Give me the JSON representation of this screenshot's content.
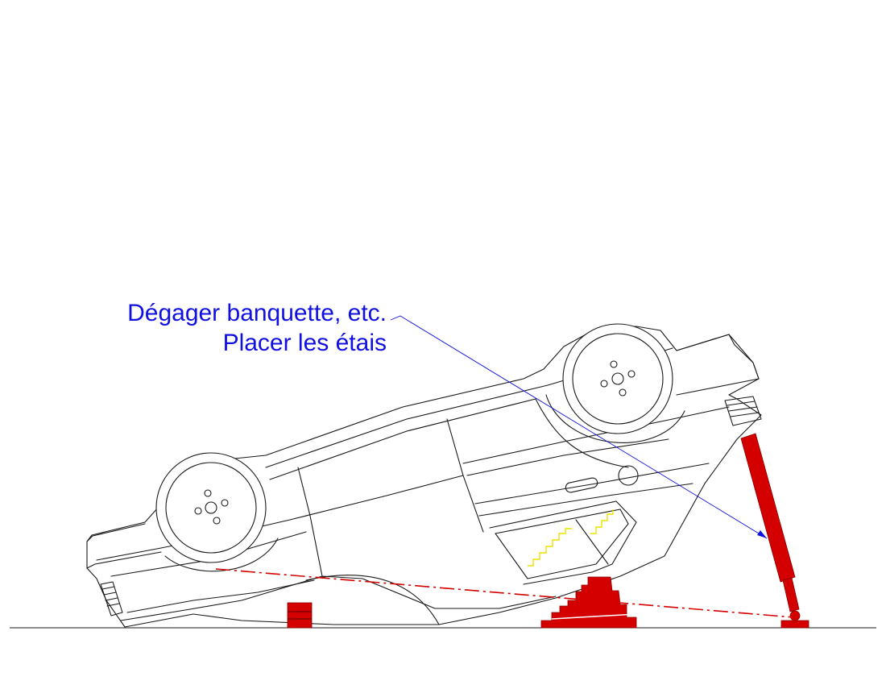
{
  "callout": {
    "line1": "Dégager banquette, etc.",
    "line2": "Placer les étais",
    "color": "#1010e0"
  },
  "colors": {
    "outline": "#1a1a1a",
    "shoring": "#d40000",
    "glass_marks": "#f0e000",
    "leader": "#1010e0"
  }
}
